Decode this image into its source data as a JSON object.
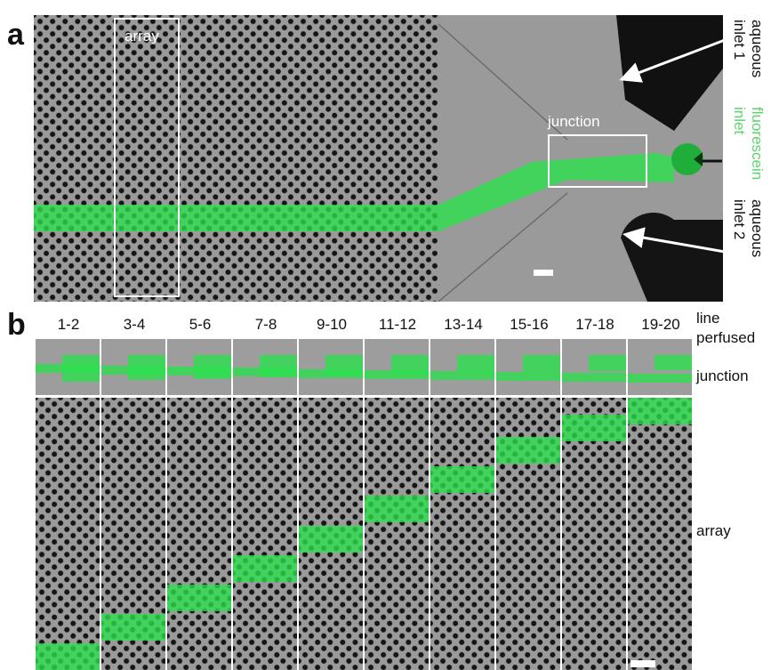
{
  "panel_a": {
    "letter": "a",
    "array_label": "array",
    "junction_label": "junction",
    "inlet1": {
      "line1": "aqueous",
      "line2": "inlet 1"
    },
    "fluor": {
      "line1": "fluorescein",
      "line2": "inlet"
    },
    "inlet2": {
      "line1": "aqueous",
      "line2": "inlet 2"
    }
  },
  "panel_b": {
    "letter": "b",
    "columns": [
      "1-2",
      "3-4",
      "5-6",
      "7-8",
      "9-10",
      "11-12",
      "13-14",
      "15-16",
      "17-18",
      "19-20"
    ],
    "line_label": "line",
    "perfused_label": "perfused",
    "junction_label": "junction",
    "array_label": "array",
    "stream_levels": [
      0.0,
      0.12,
      0.24,
      0.36,
      0.48,
      0.6,
      0.72,
      0.84,
      0.93,
      1.0
    ]
  },
  "colors": {
    "fluorescein": "#2ce14e",
    "label_green": "#5cd36f"
  }
}
